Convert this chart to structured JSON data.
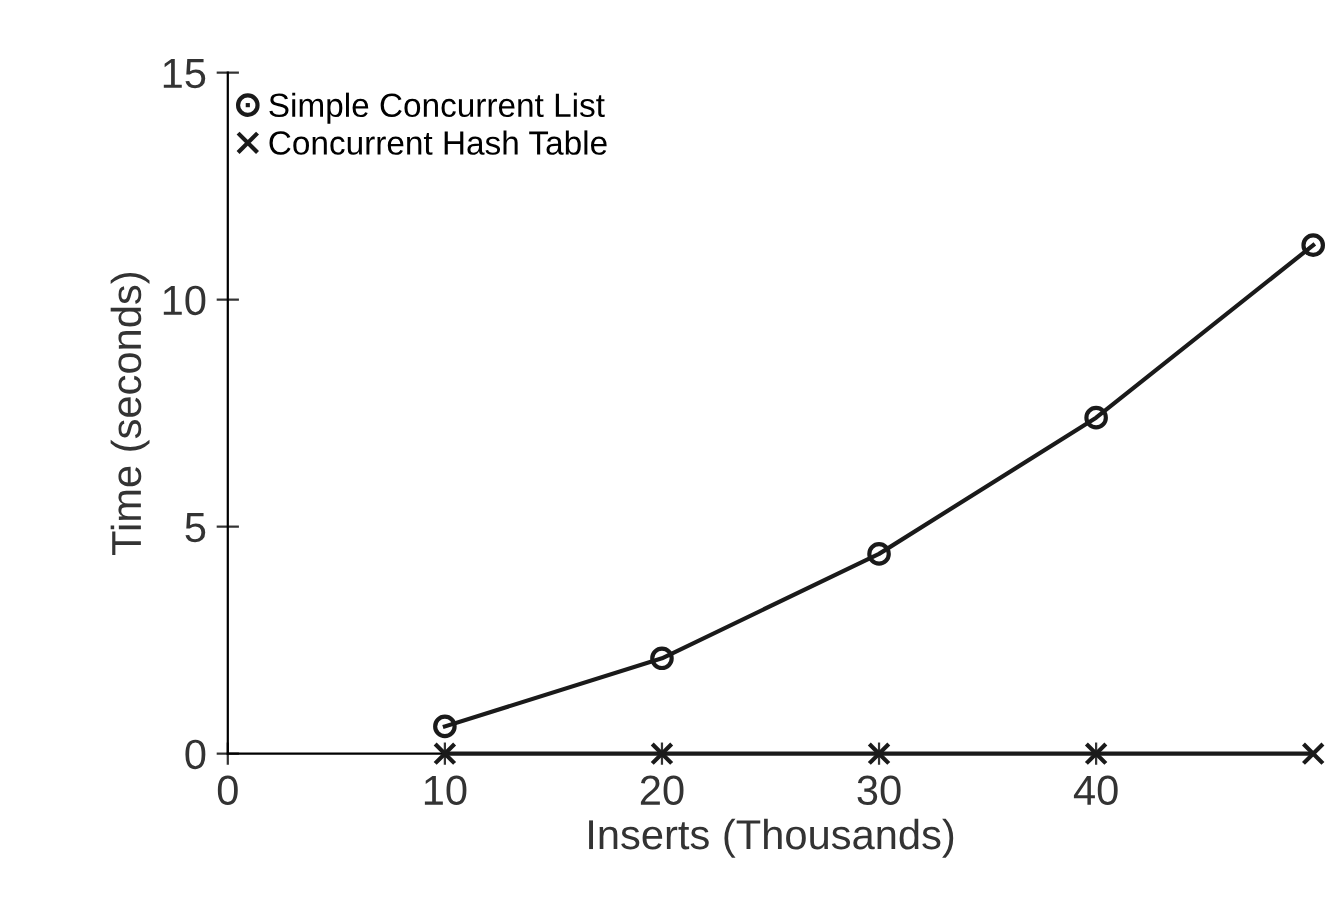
{
  "chart_data": {
    "type": "line",
    "xlabel": "Inserts (Thousands)",
    "ylabel": "Time (seconds)",
    "x": [
      10,
      20,
      30,
      40,
      50
    ],
    "series": [
      {
        "name": "Simple Concurrent List",
        "color": "#1a1a1a",
        "values": [
          0.6,
          2.1,
          4.4,
          7.4,
          11.2
        ],
        "marker": "circle"
      },
      {
        "name": "Concurrent Hash Table",
        "color": "#1a1a1a",
        "values": [
          0,
          0,
          0,
          0,
          0
        ],
        "marker": "cross"
      }
    ],
    "xlim": [
      0,
      50
    ],
    "xticks": [
      0,
      10,
      20,
      30,
      40
    ],
    "ylim": [
      0,
      15
    ],
    "yticks": [
      0,
      5,
      10,
      15
    ],
    "grid": false,
    "legend": "top left",
    "line_style": "solid"
  }
}
